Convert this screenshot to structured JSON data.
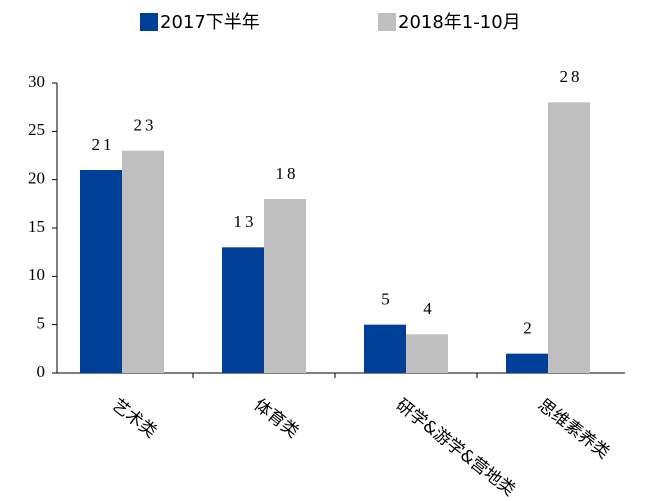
{
  "chart_data": {
    "type": "bar",
    "categories": [
      "艺术类",
      "体育类",
      "研学&游学&营地类",
      "思维素养类"
    ],
    "series": [
      {
        "name": "2017下半年",
        "color": "#003f98",
        "values": [
          21,
          13,
          5,
          2
        ]
      },
      {
        "name": "2018年1-10月",
        "color": "#bfbfbf",
        "values": [
          23,
          18,
          4,
          28
        ]
      }
    ],
    "ylim": [
      0,
      30
    ],
    "yticks": [
      0,
      5,
      10,
      15,
      20,
      25,
      30
    ],
    "grid": false,
    "legend": "top"
  }
}
